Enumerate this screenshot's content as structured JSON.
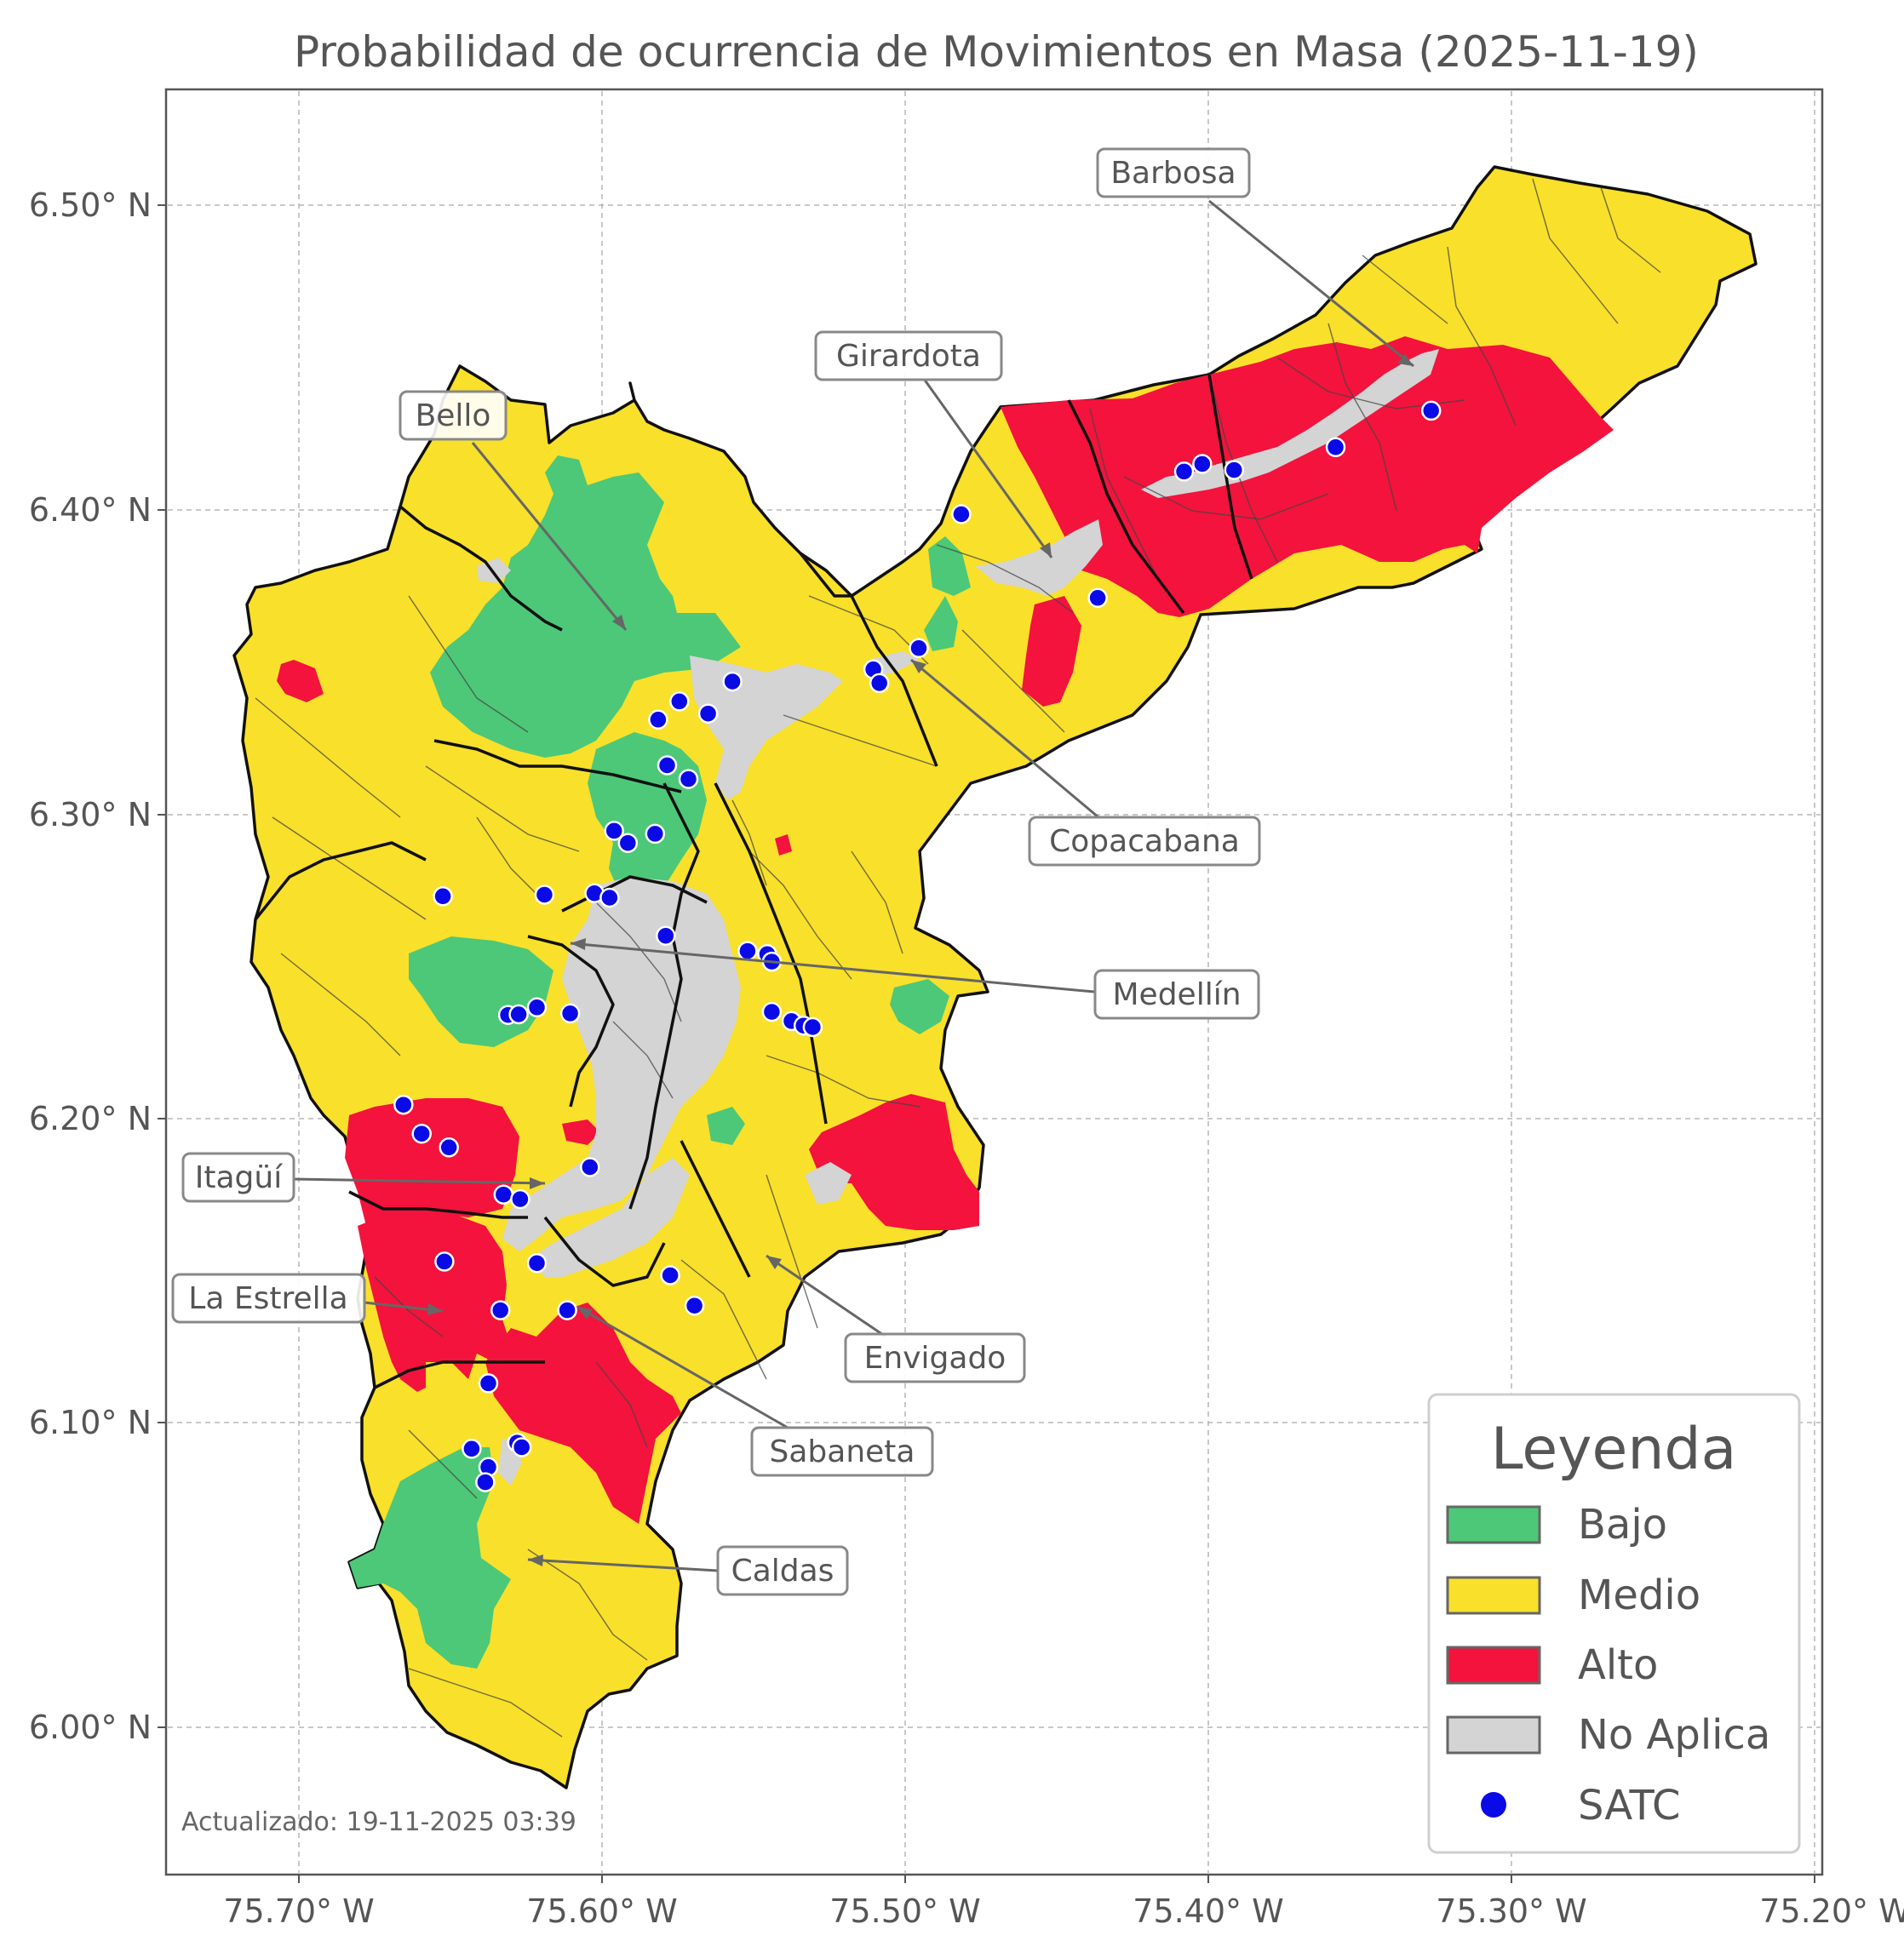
{
  "title": "Probabilidad de ocurrencia de Movimientos en Masa (2025-11-19)",
  "updated_label": "Actualizado: 19-11-2025 03:39",
  "x_ticks": [
    "75.70° W",
    "75.60° W",
    "75.50° W",
    "75.40° W",
    "75.30° W",
    "75.20° W"
  ],
  "y_ticks": [
    "6.50° N",
    "6.40° N",
    "6.30° N",
    "6.20° N",
    "6.10° N",
    "6.00° N"
  ],
  "colors": {
    "bajo": "#4cc878",
    "medio": "#f9e02a",
    "alto": "#f3133c",
    "no_aplica": "#d4d4d4",
    "satc": "#0a0ae6"
  },
  "municipalities": [
    "Barbosa",
    "Girardota",
    "Bello",
    "Copacabana",
    "Medellín",
    "Itagüí",
    "La Estrella",
    "Envigado",
    "Sabaneta",
    "Caldas"
  ],
  "legend": {
    "title": "Leyenda",
    "items": [
      {
        "label": "Bajo",
        "color": "#4cc878",
        "shape": "rectangle"
      },
      {
        "label": "Medio",
        "color": "#f9e02a",
        "shape": "rectangle"
      },
      {
        "label": "Alto",
        "color": "#f3133c",
        "shape": "rectangle"
      },
      {
        "label": "No Aplica",
        "color": "#d4d4d4",
        "shape": "rectangle"
      },
      {
        "label": "SATC",
        "color": "#0a0ae6",
        "shape": "circle"
      }
    ]
  },
  "satc_stations": [
    {
      "lon": -75.4815,
      "lat": 6.3985
    },
    {
      "lon": -75.4365,
      "lat": 6.371
    },
    {
      "lon": -75.408,
      "lat": 6.4125
    },
    {
      "lon": -75.402,
      "lat": 6.415
    },
    {
      "lon": -75.3915,
      "lat": 6.413
    },
    {
      "lon": -75.358,
      "lat": 6.4205
    },
    {
      "lon": -75.3265,
      "lat": 6.4325
    },
    {
      "lon": -75.4955,
      "lat": 6.3545
    },
    {
      "lon": -75.5105,
      "lat": 6.3475
    },
    {
      "lon": -75.5085,
      "lat": 6.343
    },
    {
      "lon": -75.557,
      "lat": 6.3435
    },
    {
      "lon": -75.565,
      "lat": 6.333
    },
    {
      "lon": -75.5745,
      "lat": 6.337
    },
    {
      "lon": -75.5815,
      "lat": 6.331
    },
    {
      "lon": -75.5785,
      "lat": 6.316
    },
    {
      "lon": -75.5715,
      "lat": 6.3115
    },
    {
      "lon": -75.596,
      "lat": 6.2945
    },
    {
      "lon": -75.5915,
      "lat": 6.2905
    },
    {
      "lon": -75.5825,
      "lat": 6.2935
    },
    {
      "lon": -75.619,
      "lat": 6.2735
    },
    {
      "lon": -75.6025,
      "lat": 6.274
    },
    {
      "lon": -75.5975,
      "lat": 6.2725
    },
    {
      "lon": -75.579,
      "lat": 6.26
    },
    {
      "lon": -75.6525,
      "lat": 6.273
    },
    {
      "lon": -75.552,
      "lat": 6.255
    },
    {
      "lon": -75.5455,
      "lat": 6.254
    },
    {
      "lon": -75.544,
      "lat": 6.2515
    },
    {
      "lon": -75.544,
      "lat": 6.235
    },
    {
      "lon": -75.5375,
      "lat": 6.232
    },
    {
      "lon": -75.5335,
      "lat": 6.2305
    },
    {
      "lon": -75.5305,
      "lat": 6.23
    },
    {
      "lon": -75.6215,
      "lat": 6.2365
    },
    {
      "lon": -75.6105,
      "lat": 6.2345
    },
    {
      "lon": -75.631,
      "lat": 6.234
    },
    {
      "lon": -75.6275,
      "lat": 6.2342
    },
    {
      "lon": -75.6655,
      "lat": 6.2045
    },
    {
      "lon": -75.6595,
      "lat": 6.195
    },
    {
      "lon": -75.6505,
      "lat": 6.1905
    },
    {
      "lon": -75.604,
      "lat": 6.184
    },
    {
      "lon": -75.6325,
      "lat": 6.175
    },
    {
      "lon": -75.627,
      "lat": 6.1735
    },
    {
      "lon": -75.6215,
      "lat": 6.1525
    },
    {
      "lon": -75.652,
      "lat": 6.153
    },
    {
      "lon": -75.5775,
      "lat": 6.1485
    },
    {
      "lon": -75.5695,
      "lat": 6.1385
    },
    {
      "lon": -75.6115,
      "lat": 6.137
    },
    {
      "lon": -75.6335,
      "lat": 6.137
    },
    {
      "lon": -75.6375,
      "lat": 6.113
    },
    {
      "lon": -75.643,
      "lat": 6.0915
    },
    {
      "lon": -75.628,
      "lat": 6.0935
    },
    {
      "lon": -75.6265,
      "lat": 6.092
    },
    {
      "lon": -75.6375,
      "lat": 6.0855
    },
    {
      "lon": -75.6385,
      "lat": 6.0805
    }
  ]
}
